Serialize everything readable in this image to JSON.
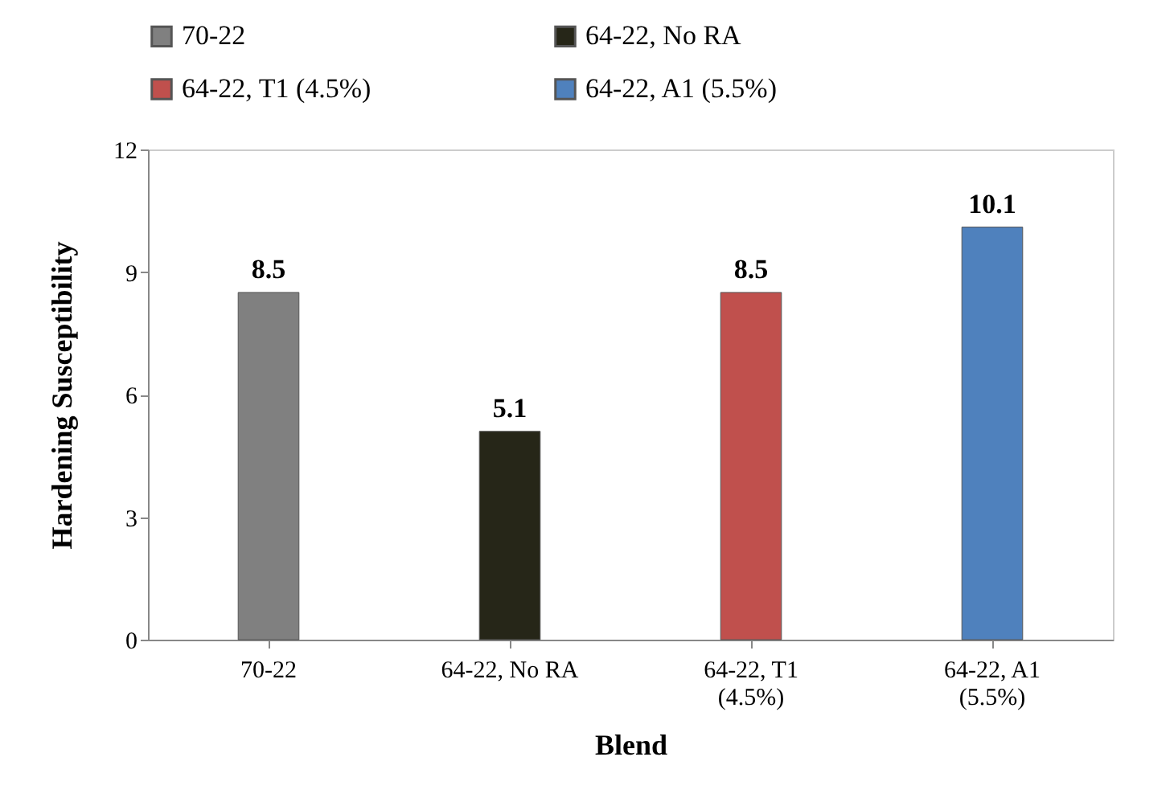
{
  "chart_data": {
    "type": "bar",
    "xlabel": "Blend",
    "ylabel": "Hardening Susceptibility",
    "categories": [
      "70-22",
      "64-22, No RA",
      "64-22, T1 (4.5%)",
      "64-22, A1 (5.5%)"
    ],
    "series": [
      {
        "name": "70-22",
        "color": "#808080",
        "values": [
          8.5,
          null,
          null,
          null
        ]
      },
      {
        "name": "64-22, No RA",
        "color": "#262618",
        "values": [
          null,
          5.1,
          null,
          null
        ]
      },
      {
        "name": "64-22, T1 (4.5%)",
        "color": "#c0504d",
        "values": [
          null,
          null,
          8.5,
          null
        ]
      },
      {
        "name": "64-22, A1 (5.5%)",
        "color": "#4f81bd",
        "values": [
          null,
          null,
          null,
          10.1
        ]
      }
    ],
    "ylim": [
      0,
      12
    ],
    "yticks": [
      0,
      3,
      6,
      9,
      12
    ],
    "data_labels": true,
    "legend": "top",
    "grid": false
  }
}
